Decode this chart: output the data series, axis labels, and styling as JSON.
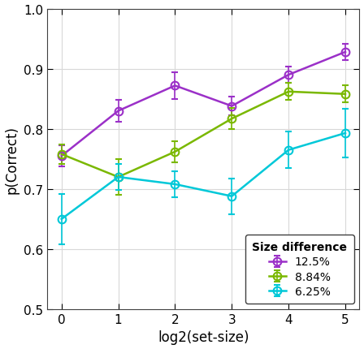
{
  "x": [
    0,
    1,
    2,
    3,
    4,
    5
  ],
  "series": [
    {
      "key": "12.5%",
      "y": [
        0.755,
        0.83,
        0.872,
        0.838,
        0.89,
        0.928
      ],
      "yerr": [
        0.018,
        0.018,
        0.022,
        0.015,
        0.014,
        0.014
      ],
      "color": "#9B30C8",
      "label": "12.5%"
    },
    {
      "key": "8.84%",
      "y": [
        0.758,
        0.72,
        0.762,
        0.817,
        0.862,
        0.858
      ],
      "yerr": [
        0.016,
        0.03,
        0.018,
        0.018,
        0.014,
        0.014
      ],
      "color": "#7AB800",
      "label": "8.84%"
    },
    {
      "key": "6.25%",
      "y": [
        0.65,
        0.72,
        0.708,
        0.688,
        0.765,
        0.793
      ],
      "yerr": [
        0.042,
        0.022,
        0.022,
        0.03,
        0.03,
        0.04
      ],
      "color": "#00C8D8",
      "label": "6.25%"
    }
  ],
  "xlabel": "log2(set-size)",
  "ylabel": "p(Correct)",
  "xlim": [
    -0.25,
    5.25
  ],
  "ylim": [
    0.5,
    1.0
  ],
  "yticks": [
    0.5,
    0.6,
    0.7,
    0.8,
    0.9,
    1.0
  ],
  "xticks": [
    0,
    1,
    2,
    3,
    4,
    5
  ],
  "legend_title": "Size difference",
  "background_color": "#ffffff",
  "grid_color": "#d8d8d8",
  "linewidth": 1.8,
  "markersize": 7,
  "capsize": 3,
  "elinewidth": 1.2,
  "markeredgewidth": 1.5,
  "xlabel_fontsize": 12,
  "ylabel_fontsize": 12,
  "tick_fontsize": 11,
  "legend_fontsize": 10,
  "legend_title_fontsize": 10
}
